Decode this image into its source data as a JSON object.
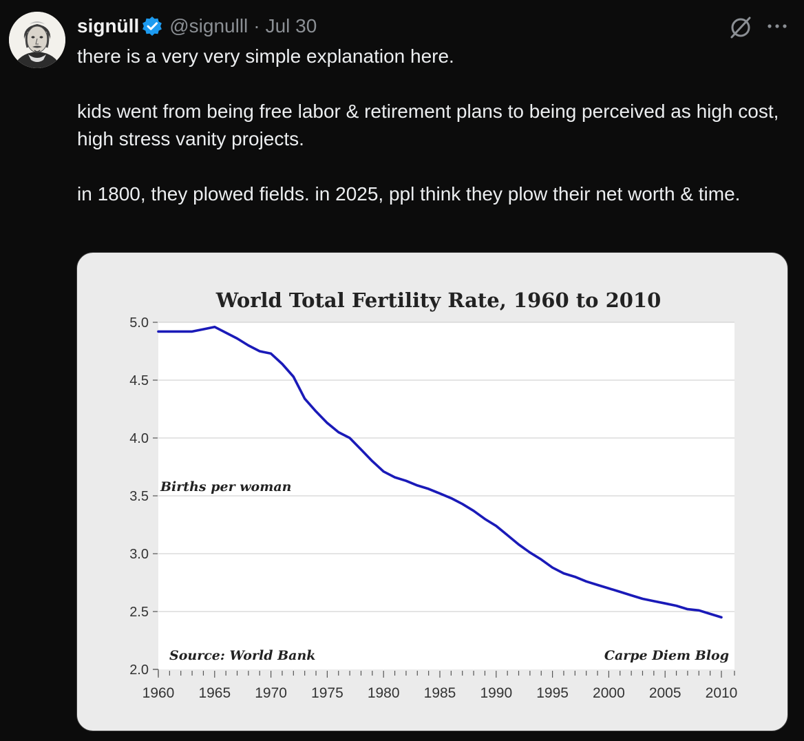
{
  "post": {
    "display_name": "signüll",
    "handle": "@signulll",
    "separator": "·",
    "date": "Jul 30",
    "paragraphs": [
      "there is a very very simple explanation here.",
      "kids went from being free labor & retirement plans to being perceived as high cost, high stress vanity projects.",
      "in 1800, they plowed fields. in 2025, ppl think they plow their net worth & time."
    ]
  },
  "icons": {
    "verified": "verified-badge-icon",
    "grok": "grok-icon",
    "more": "more-options-icon"
  },
  "colors": {
    "verified": "#1d9bf0",
    "line": "#1a1ab8",
    "background": "#0c0c0c"
  },
  "chart_data": {
    "type": "line",
    "title": "World Total Fertility Rate, 1960 to 2010",
    "ylabel": "Births per woman",
    "source": "Source: World Bank",
    "credit": "Carpe Diem Blog",
    "xlim": [
      1960,
      2010
    ],
    "ylim": [
      2.0,
      5.0
    ],
    "x_ticks": [
      "1960",
      "1965",
      "1970",
      "1975",
      "1980",
      "1985",
      "1990",
      "1995",
      "2000",
      "2005",
      "2010"
    ],
    "y_ticks": [
      "2.0",
      "2.5",
      "3.0",
      "3.5",
      "4.0",
      "4.5",
      "5.0"
    ],
    "grid": true,
    "series": [
      {
        "x": [
          1960,
          1961,
          1962,
          1963,
          1964,
          1965,
          1966,
          1967,
          1968,
          1969,
          1970,
          1971,
          1972,
          1973,
          1974,
          1975,
          1976,
          1977,
          1978,
          1979,
          1980,
          1981,
          1982,
          1983,
          1984,
          1985,
          1986,
          1987,
          1988,
          1989,
          1990,
          1991,
          1992,
          1993,
          1994,
          1995,
          1996,
          1997,
          1998,
          1999,
          2000,
          2001,
          2002,
          2003,
          2004,
          2005,
          2006,
          2007,
          2008,
          2009,
          2010
        ],
        "y": [
          4.92,
          4.92,
          4.92,
          4.92,
          4.94,
          4.96,
          4.91,
          4.86,
          4.8,
          4.75,
          4.73,
          4.64,
          4.53,
          4.34,
          4.23,
          4.13,
          4.05,
          4.0,
          3.9,
          3.8,
          3.71,
          3.66,
          3.63,
          3.59,
          3.56,
          3.52,
          3.48,
          3.43,
          3.37,
          3.3,
          3.24,
          3.16,
          3.08,
          3.01,
          2.95,
          2.88,
          2.83,
          2.8,
          2.76,
          2.73,
          2.7,
          2.67,
          2.64,
          2.61,
          2.59,
          2.57,
          2.55,
          2.52,
          2.51,
          2.48,
          2.45
        ]
      }
    ]
  }
}
